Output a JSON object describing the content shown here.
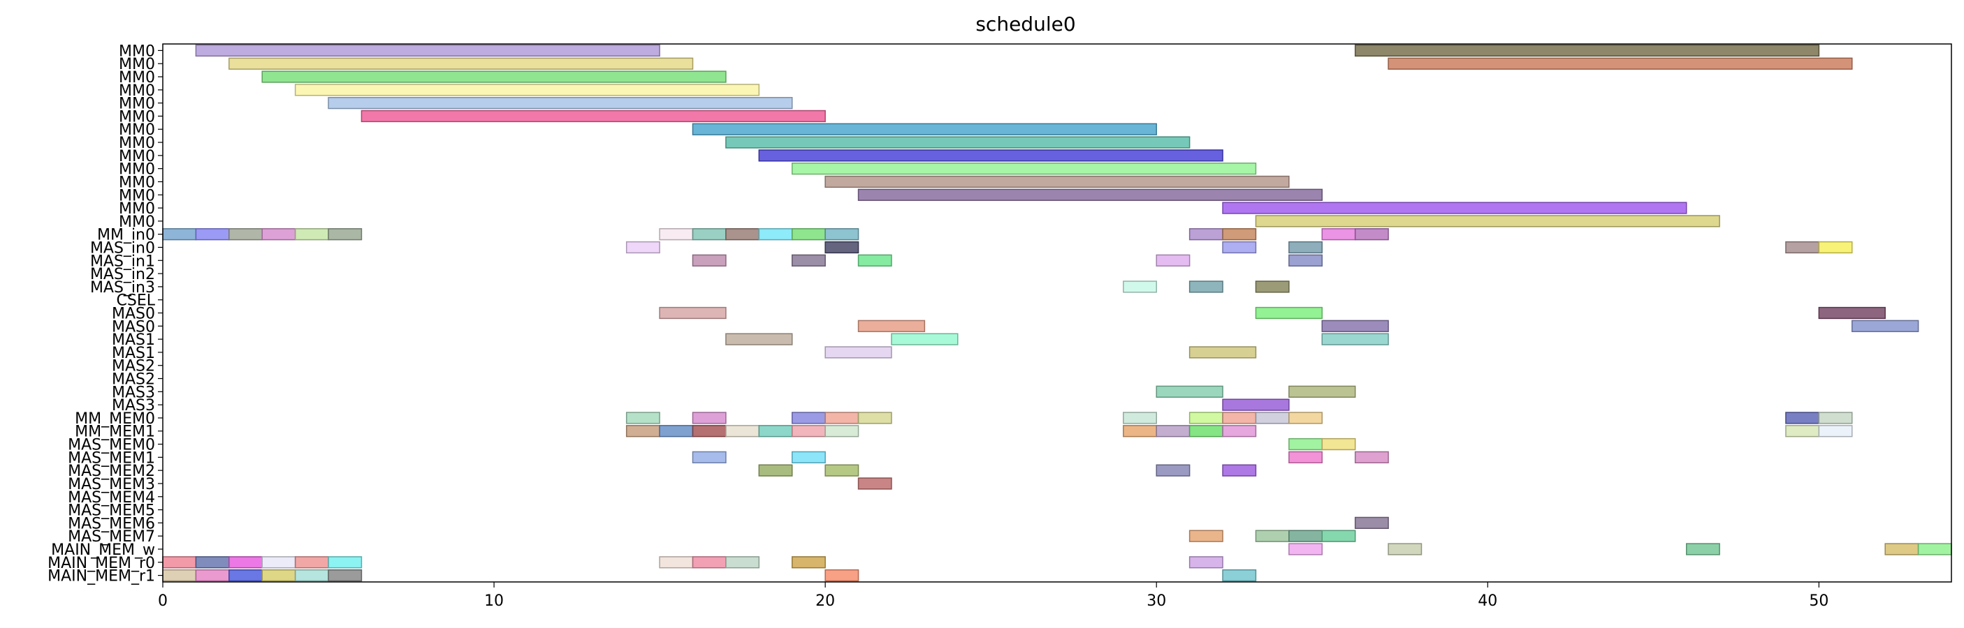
{
  "chart_data": {
    "type": "gantt",
    "title": "schedule0",
    "xlabel": "",
    "ylabel": "",
    "xlim": [
      0,
      54
    ],
    "x_ticks": [
      0,
      10,
      20,
      30,
      40,
      50
    ],
    "x_tick_labels": [
      "0",
      "10",
      "20",
      "30",
      "40",
      "50"
    ],
    "grid": false,
    "rows": [
      "MM0",
      "MM0",
      "MM0",
      "MM0",
      "MM0",
      "MM0",
      "MM0",
      "MM0",
      "MM0",
      "MM0",
      "MM0",
      "MM0",
      "MM0",
      "MM0",
      "MM_in0",
      "MAS_in0",
      "MAS_in1",
      "MAS_in2",
      "MAS_in3",
      "CSEL",
      "MAS0",
      "MAS0",
      "MAS1",
      "MAS1",
      "MAS2",
      "MAS2",
      "MAS3",
      "MAS3",
      "MM_MEM0",
      "MM_MEM1",
      "MAS_MEM0",
      "MAS_MEM1",
      "MAS_MEM2",
      "MAS_MEM3",
      "MAS_MEM4",
      "MAS_MEM5",
      "MAS_MEM6",
      "MAS_MEM7",
      "MAIN_MEM_w",
      "MAIN_MEM_r0",
      "MAIN_MEM_r1"
    ],
    "bars": [
      {
        "row": 0,
        "start": 1,
        "end": 15,
        "color": "#b39ddb"
      },
      {
        "row": 0,
        "start": 36,
        "end": 50,
        "color": "#7a7250"
      },
      {
        "row": 1,
        "start": 2,
        "end": 16,
        "color": "#e6d98a"
      },
      {
        "row": 1,
        "start": 37,
        "end": 51,
        "color": "#cd8060"
      },
      {
        "row": 2,
        "start": 3,
        "end": 17,
        "color": "#7de07d"
      },
      {
        "row": 3,
        "start": 4,
        "end": 18,
        "color": "#fbf5a8"
      },
      {
        "row": 4,
        "start": 5,
        "end": 19,
        "color": "#a9c4e8"
      },
      {
        "row": 5,
        "start": 6,
        "end": 20,
        "color": "#f0609a"
      },
      {
        "row": 6,
        "start": 16,
        "end": 30,
        "color": "#4fa8d0"
      },
      {
        "row": 7,
        "start": 17,
        "end": 31,
        "color": "#5ebfab"
      },
      {
        "row": 8,
        "start": 18,
        "end": 32,
        "color": "#4c44d9"
      },
      {
        "row": 9,
        "start": 19,
        "end": 33,
        "color": "#98f598"
      },
      {
        "row": 10,
        "start": 20,
        "end": 34,
        "color": "#b79a8f"
      },
      {
        "row": 11,
        "start": 21,
        "end": 35,
        "color": "#8a6fa0"
      },
      {
        "row": 12,
        "start": 32,
        "end": 46,
        "color": "#a25ef0"
      },
      {
        "row": 13,
        "start": 33,
        "end": 47,
        "color": "#d8d07a"
      },
      {
        "row": 14,
        "start": 0,
        "end": 1,
        "color": "#7aa8d0"
      },
      {
        "row": 14,
        "start": 1,
        "end": 2,
        "color": "#8a8af5"
      },
      {
        "row": 14,
        "start": 2,
        "end": 3,
        "color": "#a2aa9a"
      },
      {
        "row": 14,
        "start": 3,
        "end": 4,
        "color": "#d890d0"
      },
      {
        "row": 14,
        "start": 4,
        "end": 5,
        "color": "#c8e6a8"
      },
      {
        "row": 14,
        "start": 5,
        "end": 6,
        "color": "#9aaa94"
      },
      {
        "row": 14,
        "start": 15,
        "end": 16,
        "color": "#f8e8f0"
      },
      {
        "row": 14,
        "start": 16,
        "end": 17,
        "color": "#88c8b8"
      },
      {
        "row": 14,
        "start": 17,
        "end": 18,
        "color": "#9a8078"
      },
      {
        "row": 14,
        "start": 18,
        "end": 19,
        "color": "#7ae8f8"
      },
      {
        "row": 14,
        "start": 19,
        "end": 20,
        "color": "#7ae07a"
      },
      {
        "row": 14,
        "start": 20,
        "end": 21,
        "color": "#7ab8c8"
      },
      {
        "row": 14,
        "start": 31,
        "end": 32,
        "color": "#b090d0"
      },
      {
        "row": 14,
        "start": 32,
        "end": 33,
        "color": "#c88a60"
      },
      {
        "row": 14,
        "start": 35,
        "end": 36,
        "color": "#e880e0"
      },
      {
        "row": 14,
        "start": 36,
        "end": 37,
        "color": "#b878c0"
      },
      {
        "row": 15,
        "start": 14,
        "end": 15,
        "color": "#ecd0f8"
      },
      {
        "row": 15,
        "start": 20,
        "end": 21,
        "color": "#4a4a6a"
      },
      {
        "row": 15,
        "start": 32,
        "end": 33,
        "color": "#a0a0f0"
      },
      {
        "row": 15,
        "start": 34,
        "end": 35,
        "color": "#7aa0b0"
      },
      {
        "row": 15,
        "start": 49,
        "end": 50,
        "color": "#a89090"
      },
      {
        "row": 15,
        "start": 50,
        "end": 51,
        "color": "#f8f060"
      },
      {
        "row": 16,
        "start": 16,
        "end": 17,
        "color": "#c090b0"
      },
      {
        "row": 16,
        "start": 19,
        "end": 20,
        "color": "#8a7a98"
      },
      {
        "row": 16,
        "start": 21,
        "end": 22,
        "color": "#70e890"
      },
      {
        "row": 16,
        "start": 30,
        "end": 31,
        "color": "#e0b0f0"
      },
      {
        "row": 16,
        "start": 34,
        "end": 35,
        "color": "#8a90c8"
      },
      {
        "row": 18,
        "start": 29,
        "end": 30,
        "color": "#c8f8e8"
      },
      {
        "row": 18,
        "start": 31,
        "end": 32,
        "color": "#7aa8b0"
      },
      {
        "row": 18,
        "start": 33,
        "end": 34,
        "color": "#8a8a60"
      },
      {
        "row": 20,
        "start": 15,
        "end": 17,
        "color": "#d8a8a8"
      },
      {
        "row": 20,
        "start": 33,
        "end": 35,
        "color": "#80f080"
      },
      {
        "row": 20,
        "start": 50,
        "end": 52,
        "color": "#7a4a68"
      },
      {
        "row": 21,
        "start": 21,
        "end": 23,
        "color": "#e8a088"
      },
      {
        "row": 21,
        "start": 35,
        "end": 37,
        "color": "#8a78b0"
      },
      {
        "row": 21,
        "start": 51,
        "end": 53,
        "color": "#8a98d0"
      },
      {
        "row": 22,
        "start": 17,
        "end": 19,
        "color": "#c0b0a0"
      },
      {
        "row": 22,
        "start": 22,
        "end": 24,
        "color": "#98f8d0"
      },
      {
        "row": 22,
        "start": 35,
        "end": 37,
        "color": "#88d0c8"
      },
      {
        "row": 23,
        "start": 20,
        "end": 22,
        "color": "#e0d0f0"
      },
      {
        "row": 23,
        "start": 31,
        "end": 33,
        "color": "#d0c880"
      },
      {
        "row": 26,
        "start": 30,
        "end": 32,
        "color": "#88d0b0"
      },
      {
        "row": 26,
        "start": 34,
        "end": 36,
        "color": "#b0b880"
      },
      {
        "row": 27,
        "start": 32,
        "end": 34,
        "color": "#9a60d8"
      },
      {
        "row": 28,
        "start": 14,
        "end": 15,
        "color": "#a8dcc0"
      },
      {
        "row": 28,
        "start": 16,
        "end": 17,
        "color": "#d890d0"
      },
      {
        "row": 28,
        "start": 19,
        "end": 20,
        "color": "#8a88e0"
      },
      {
        "row": 28,
        "start": 20,
        "end": 21,
        "color": "#f0a898"
      },
      {
        "row": 28,
        "start": 21,
        "end": 22,
        "color": "#d8d898"
      },
      {
        "row": 28,
        "start": 29,
        "end": 30,
        "color": "#c8e8d8"
      },
      {
        "row": 28,
        "start": 31,
        "end": 32,
        "color": "#c8f890"
      },
      {
        "row": 28,
        "start": 32,
        "end": 33,
        "color": "#f0a898"
      },
      {
        "row": 28,
        "start": 33,
        "end": 34,
        "color": "#c8c8d8"
      },
      {
        "row": 28,
        "start": 34,
        "end": 35,
        "color": "#f0d090"
      },
      {
        "row": 28,
        "start": 49,
        "end": 50,
        "color": "#6068b8"
      },
      {
        "row": 28,
        "start": 50,
        "end": 51,
        "color": "#c8d8c8"
      },
      {
        "row": 29,
        "start": 14,
        "end": 15,
        "color": "#c8a080"
      },
      {
        "row": 29,
        "start": 15,
        "end": 16,
        "color": "#6890c8"
      },
      {
        "row": 29,
        "start": 16,
        "end": 17,
        "color": "#a85858"
      },
      {
        "row": 29,
        "start": 17,
        "end": 18,
        "color": "#e8e0d0"
      },
      {
        "row": 29,
        "start": 18,
        "end": 19,
        "color": "#78d0c0"
      },
      {
        "row": 29,
        "start": 19,
        "end": 20,
        "color": "#f0a8b0"
      },
      {
        "row": 29,
        "start": 20,
        "end": 21,
        "color": "#d0e8d0"
      },
      {
        "row": 29,
        "start": 29,
        "end": 30,
        "color": "#e8a870"
      },
      {
        "row": 29,
        "start": 30,
        "end": 31,
        "color": "#b8a0c8"
      },
      {
        "row": 29,
        "start": 31,
        "end": 32,
        "color": "#70e070"
      },
      {
        "row": 29,
        "start": 32,
        "end": 33,
        "color": "#e098d8"
      },
      {
        "row": 29,
        "start": 49,
        "end": 50,
        "color": "#d8e8b8"
      },
      {
        "row": 29,
        "start": 50,
        "end": 51,
        "color": "#e8f0f8"
      },
      {
        "row": 30,
        "start": 34,
        "end": 35,
        "color": "#90f090"
      },
      {
        "row": 30,
        "start": 35,
        "end": 36,
        "color": "#f0e080"
      },
      {
        "row": 31,
        "start": 16,
        "end": 17,
        "color": "#98b0e8"
      },
      {
        "row": 31,
        "start": 19,
        "end": 20,
        "color": "#78e0f8"
      },
      {
        "row": 31,
        "start": 34,
        "end": 35,
        "color": "#f080d0"
      },
      {
        "row": 31,
        "start": 36,
        "end": 37,
        "color": "#d890c8"
      },
      {
        "row": 32,
        "start": 18,
        "end": 19,
        "color": "#9ab068"
      },
      {
        "row": 32,
        "start": 20,
        "end": 21,
        "color": "#a8c070"
      },
      {
        "row": 32,
        "start": 30,
        "end": 31,
        "color": "#8888b8"
      },
      {
        "row": 32,
        "start": 32,
        "end": 33,
        "color": "#a060e0"
      },
      {
        "row": 33,
        "start": 21,
        "end": 22,
        "color": "#c07070"
      },
      {
        "row": 36,
        "start": 36,
        "end": 37,
        "color": "#8a7898"
      },
      {
        "row": 37,
        "start": 31,
        "end": 32,
        "color": "#e8a878"
      },
      {
        "row": 37,
        "start": 33,
        "end": 34,
        "color": "#a0c8a0"
      },
      {
        "row": 37,
        "start": 34,
        "end": 35,
        "color": "#70a890"
      },
      {
        "row": 37,
        "start": 35,
        "end": 36,
        "color": "#70d0a0"
      },
      {
        "row": 38,
        "start": 34,
        "end": 35,
        "color": "#f0a8f0"
      },
      {
        "row": 38,
        "start": 37,
        "end": 38,
        "color": "#c8d0b0"
      },
      {
        "row": 38,
        "start": 46,
        "end": 47,
        "color": "#78c898"
      },
      {
        "row": 38,
        "start": 52,
        "end": 53,
        "color": "#d8c070"
      },
      {
        "row": 38,
        "start": 53,
        "end": 54,
        "color": "#90f090"
      },
      {
        "row": 39,
        "start": 0,
        "end": 1,
        "color": "#f08898"
      },
      {
        "row": 39,
        "start": 1,
        "end": 2,
        "color": "#6878b0"
      },
      {
        "row": 39,
        "start": 2,
        "end": 3,
        "color": "#e860e0"
      },
      {
        "row": 39,
        "start": 3,
        "end": 4,
        "color": "#e8e8f8"
      },
      {
        "row": 39,
        "start": 4,
        "end": 5,
        "color": "#f09898"
      },
      {
        "row": 39,
        "start": 5,
        "end": 6,
        "color": "#78f0f0"
      },
      {
        "row": 39,
        "start": 15,
        "end": 16,
        "color": "#f0e0d8"
      },
      {
        "row": 39,
        "start": 16,
        "end": 17,
        "color": "#f090a8"
      },
      {
        "row": 39,
        "start": 17,
        "end": 18,
        "color": "#c0d8c8"
      },
      {
        "row": 39,
        "start": 19,
        "end": 20,
        "color": "#d0a850"
      },
      {
        "row": 39,
        "start": 31,
        "end": 32,
        "color": "#d0a8e8"
      },
      {
        "row": 40,
        "start": 0,
        "end": 1,
        "color": "#d8c8a8"
      },
      {
        "row": 40,
        "start": 1,
        "end": 2,
        "color": "#e888c8"
      },
      {
        "row": 40,
        "start": 2,
        "end": 3,
        "color": "#5060e0"
      },
      {
        "row": 40,
        "start": 3,
        "end": 4,
        "color": "#d8d070"
      },
      {
        "row": 40,
        "start": 4,
        "end": 5,
        "color": "#a8e0d8"
      },
      {
        "row": 40,
        "start": 5,
        "end": 6,
        "color": "#8a8a8a"
      },
      {
        "row": 40,
        "start": 20,
        "end": 21,
        "color": "#f89070"
      },
      {
        "row": 40,
        "start": 32,
        "end": 33,
        "color": "#78c8d0"
      }
    ]
  }
}
